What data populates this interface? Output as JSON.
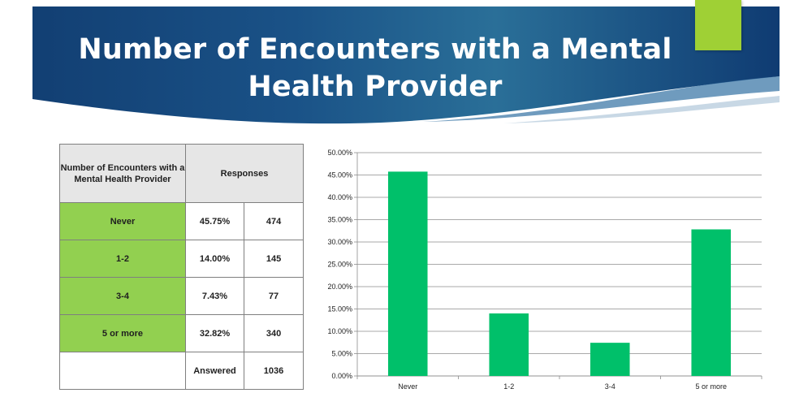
{
  "slide": {
    "title": "Number of Encounters with a Mental Health Provider"
  },
  "colors": {
    "accent": "#9fd035",
    "banner": "#1d5a8c",
    "table_category": "#92d050",
    "table_header": "#e6e6e6",
    "bar": "#00c06a"
  },
  "table": {
    "header_category": "Number of Encounters with a Mental Health Provider",
    "header_responses": "Responses",
    "rows": [
      {
        "category": "Never",
        "percent": "45.75%",
        "count": "474"
      },
      {
        "category": "1-2",
        "percent": "14.00%",
        "count": "145"
      },
      {
        "category": "3-4",
        "percent": "7.43%",
        "count": "77"
      },
      {
        "category": "5 or more",
        "percent": "32.82%",
        "count": "340"
      }
    ],
    "answered_label": "Answered",
    "answered_count": "1036"
  },
  "chart_data": {
    "type": "bar",
    "categories": [
      "Never",
      "1-2",
      "3-4",
      "5 or more"
    ],
    "values": [
      45.75,
      14.0,
      7.43,
      32.82
    ],
    "ylim": [
      0,
      50
    ],
    "yticks": [
      0,
      5,
      10,
      15,
      20,
      25,
      30,
      35,
      40,
      45,
      50
    ],
    "ytick_labels": [
      "0.00%",
      "5.00%",
      "10.00%",
      "15.00%",
      "20.00%",
      "25.00%",
      "30.00%",
      "35.00%",
      "40.00%",
      "45.00%",
      "50.00%"
    ],
    "grid": true,
    "legend": false
  }
}
